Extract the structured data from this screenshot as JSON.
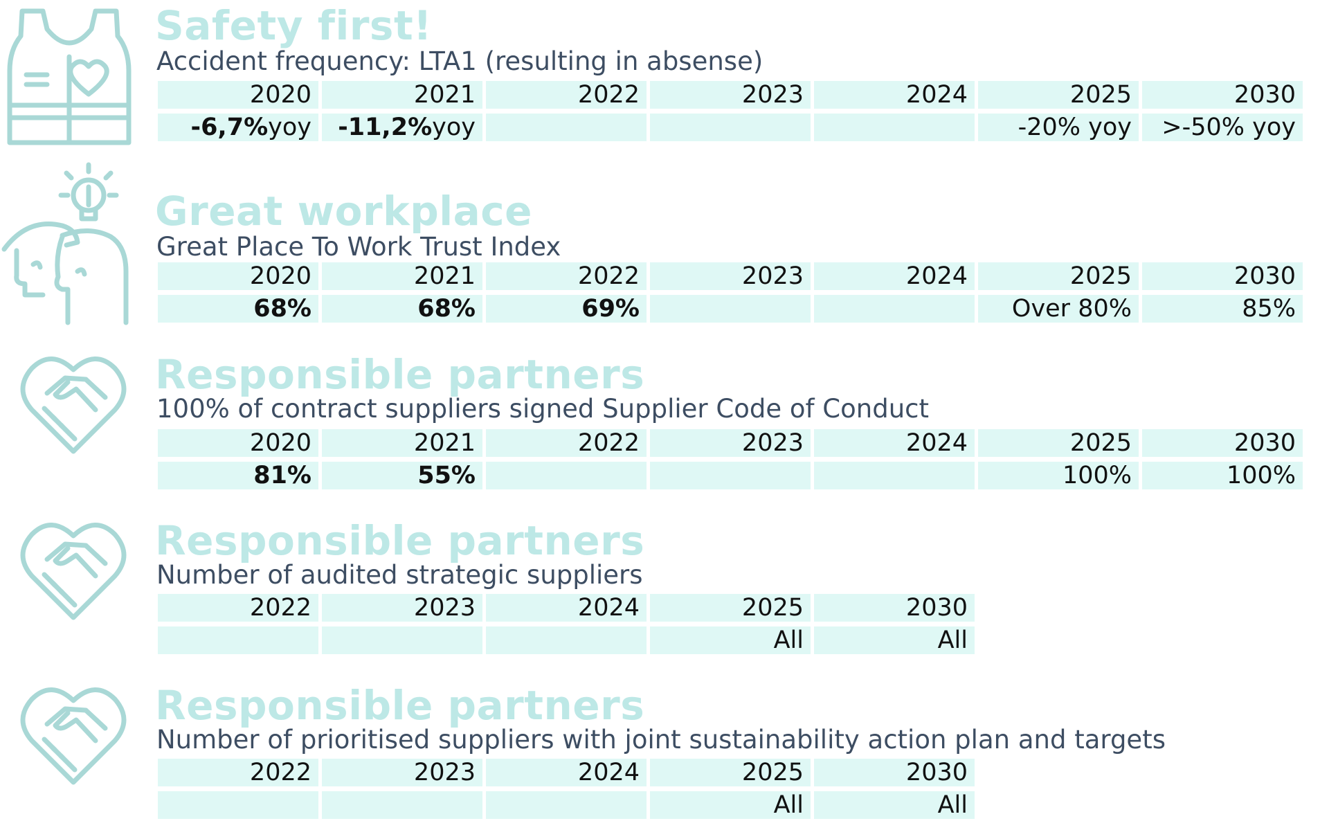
{
  "colors": {
    "accent_light": "#bde8e6",
    "cell_bg": "#dff8f5",
    "subtitle": "#3d4d62",
    "icon_stroke": "#a9d8d6"
  },
  "sections": [
    {
      "icon": "safety-vest-icon",
      "title": "Safety first!",
      "subtitle": "Accident frequency: LTA1 (resulting in absense)",
      "years": [
        "2020",
        "2021",
        "2022",
        "2023",
        "2024",
        "2025",
        "2030"
      ],
      "values": [
        {
          "strong": "-6,7%",
          "text": "yoy"
        },
        {
          "strong": "-11,2%",
          "text": "yoy"
        },
        {
          "strong": "",
          "text": ""
        },
        {
          "strong": "",
          "text": ""
        },
        {
          "strong": "",
          "text": ""
        },
        {
          "strong": "",
          "text": "-20% yoy"
        },
        {
          "strong": "",
          "text": ">-50% yoy"
        }
      ]
    },
    {
      "icon": "people-idea-icon",
      "title": "Great workplace",
      "subtitle": "Great Place To Work Trust Index",
      "years": [
        "2020",
        "2021",
        "2022",
        "2023",
        "2024",
        "2025",
        "2030"
      ],
      "values": [
        {
          "strong": "68%",
          "text": ""
        },
        {
          "strong": "68%",
          "text": ""
        },
        {
          "strong": "69%",
          "text": ""
        },
        {
          "strong": "",
          "text": ""
        },
        {
          "strong": "",
          "text": ""
        },
        {
          "strong": "",
          "text": "Over 80%"
        },
        {
          "strong": "",
          "text": "85%"
        }
      ]
    },
    {
      "icon": "handshake-heart-icon",
      "title": "Responsible partners",
      "subtitle": "100% of contract suppliers signed Supplier Code of Conduct",
      "years": [
        "2020",
        "2021",
        "2022",
        "2023",
        "2024",
        "2025",
        "2030"
      ],
      "values": [
        {
          "strong": "81%",
          "text": ""
        },
        {
          "strong": "55%",
          "text": ""
        },
        {
          "strong": "",
          "text": ""
        },
        {
          "strong": "",
          "text": ""
        },
        {
          "strong": "",
          "text": ""
        },
        {
          "strong": "",
          "text": "100%"
        },
        {
          "strong": "",
          "text": "100%"
        }
      ]
    },
    {
      "icon": "handshake-heart-icon",
      "title": "Responsible partners",
      "subtitle": "Number of audited strategic suppliers",
      "years": [
        "2022",
        "2023",
        "2024",
        "2025",
        "2030"
      ],
      "values": [
        {
          "strong": "",
          "text": ""
        },
        {
          "strong": "",
          "text": ""
        },
        {
          "strong": "",
          "text": ""
        },
        {
          "strong": "",
          "text": "All"
        },
        {
          "strong": "",
          "text": "All"
        }
      ]
    },
    {
      "icon": "handshake-heart-icon",
      "title": "Responsible partners",
      "subtitle": "Number of prioritised suppliers with joint sustainability action plan and targets",
      "years": [
        "2022",
        "2023",
        "2024",
        "2025",
        "2030"
      ],
      "values": [
        {
          "strong": "",
          "text": ""
        },
        {
          "strong": "",
          "text": ""
        },
        {
          "strong": "",
          "text": ""
        },
        {
          "strong": "",
          "text": "All"
        },
        {
          "strong": "",
          "text": "All"
        }
      ]
    }
  ]
}
